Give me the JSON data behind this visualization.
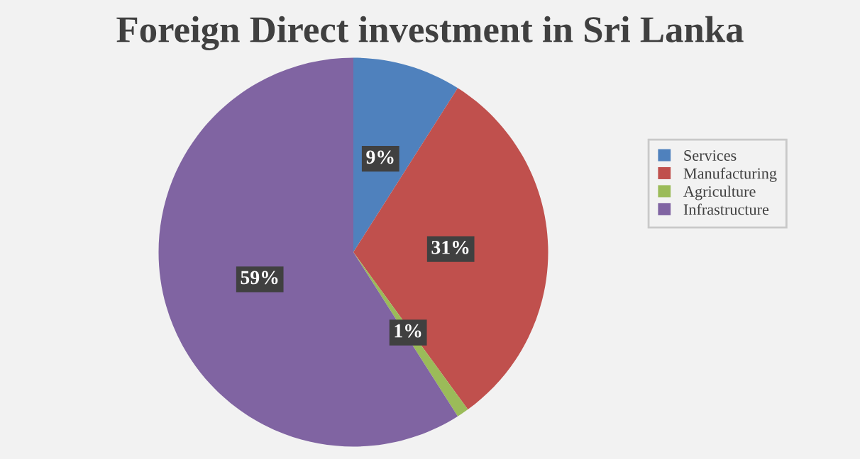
{
  "chart_data": {
    "type": "pie",
    "title": "Foreign Direct investment in Sri Lanka",
    "categories": [
      "Services",
      "Manufacturing",
      "Agriculture",
      "Infrastructure"
    ],
    "values": [
      9,
      31,
      1,
      59
    ],
    "colors": [
      "#4f81bd",
      "#c0504d",
      "#9bbb59",
      "#8064a2"
    ],
    "value_labels": [
      "9%",
      "31%",
      "1%",
      "59%"
    ],
    "legend": "right"
  }
}
